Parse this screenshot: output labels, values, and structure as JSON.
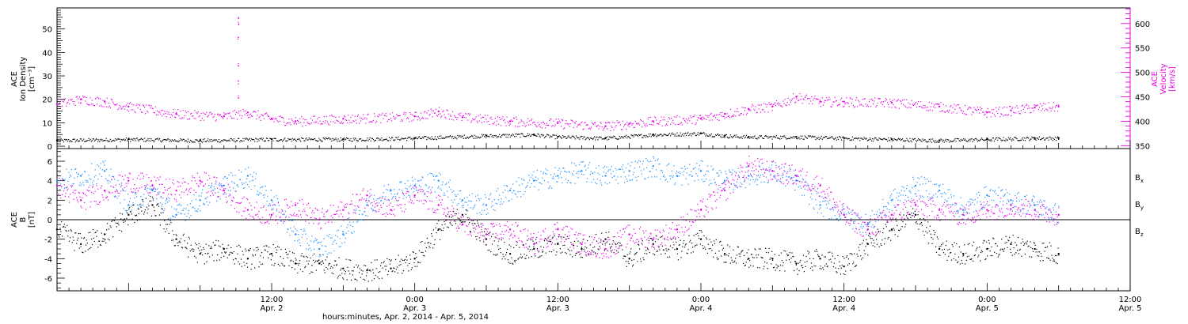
{
  "chart_data": [
    {
      "type": "scatter",
      "panel": "top",
      "x_start": "2014-04-01T18:00",
      "x_end": "2014-04-05T12:00",
      "ylabel_left": [
        "ACE",
        "Ion Density",
        "[cm⁻³]"
      ],
      "ylabel_right": [
        "ACE",
        "Velocity",
        "[km/s]"
      ],
      "ylim_left": [
        -1,
        59
      ],
      "ylim_right": [
        344,
        632
      ],
      "yticks_left": [
        0,
        10,
        20,
        30,
        40,
        50
      ],
      "yticks_right": [
        350,
        400,
        450,
        500,
        550,
        600
      ],
      "series": [
        {
          "axis": "left",
          "color": "#000000",
          "points": [
            [
              "2014-04-01T18:00",
              2.5
            ],
            [
              "2014-04-02T00:00",
              3.0
            ],
            [
              "2014-04-02T06:00",
              2.5
            ],
            [
              "2014-04-02T12:00",
              3.0
            ],
            [
              "2014-04-02T18:00",
              3.0
            ],
            [
              "2014-04-03T00:00",
              3.5
            ],
            [
              "2014-04-03T06:00",
              4.5
            ],
            [
              "2014-04-03T10:00",
              5.0
            ],
            [
              "2014-04-03T12:00",
              4.0
            ],
            [
              "2014-04-03T16:00",
              3.5
            ],
            [
              "2014-04-03T20:00",
              5.0
            ],
            [
              "2014-04-04T00:00",
              5.5
            ],
            [
              "2014-04-04T02:00",
              4.5
            ],
            [
              "2014-04-04T04:00",
              4.0
            ],
            [
              "2014-04-04T08:00",
              4.0
            ],
            [
              "2014-04-04T12:00",
              3.5
            ],
            [
              "2014-04-04T16:00",
              3.0
            ],
            [
              "2014-04-04T20:00",
              2.5
            ],
            [
              "2014-04-05T00:00",
              3.0
            ],
            [
              "2014-04-05T04:00",
              3.5
            ],
            [
              "2014-04-05T06:00",
              3.5
            ]
          ]
        },
        {
          "axis": "right",
          "color": "#e600e6",
          "points": [
            [
              "2014-04-01T18:00",
              435
            ],
            [
              "2014-04-01T20:00",
              445
            ],
            [
              "2014-04-01T22:00",
              440
            ],
            [
              "2014-04-02T00:00",
              430
            ],
            [
              "2014-04-02T04:00",
              415
            ],
            [
              "2014-04-02T08:00",
              410
            ],
            [
              "2014-04-02T10:00",
              418
            ],
            [
              "2014-04-02T12:00",
              405
            ],
            [
              "2014-04-02T14:00",
              400
            ],
            [
              "2014-04-02T18:00",
              405
            ],
            [
              "2014-04-03T00:00",
              410
            ],
            [
              "2014-04-03T02:00",
              420
            ],
            [
              "2014-04-03T04:00",
              408
            ],
            [
              "2014-04-03T08:00",
              400
            ],
            [
              "2014-04-03T12:00",
              396
            ],
            [
              "2014-04-03T16:00",
              390
            ],
            [
              "2014-04-03T18:00",
              395
            ],
            [
              "2014-04-03T20:00",
              400
            ],
            [
              "2014-04-04T00:00",
              405
            ],
            [
              "2014-04-04T02:00",
              415
            ],
            [
              "2014-04-04T04:00",
              425
            ],
            [
              "2014-04-04T06:00",
              430
            ],
            [
              "2014-04-04T08:00",
              450
            ],
            [
              "2014-04-04T10:00",
              440
            ],
            [
              "2014-04-04T12:00",
              440
            ],
            [
              "2014-04-04T16:00",
              438
            ],
            [
              "2014-04-04T20:00",
              430
            ],
            [
              "2014-04-05T00:00",
              418
            ],
            [
              "2014-04-05T02:00",
              422
            ],
            [
              "2014-04-05T04:00",
              428
            ],
            [
              "2014-04-05T06:00",
              430
            ]
          ],
          "spike": {
            "time": "2014-04-02T09:10",
            "values": [
              450,
              480,
              515,
              570,
              600,
              615
            ]
          }
        }
      ]
    },
    {
      "type": "scatter",
      "panel": "bottom",
      "x_start": "2014-04-01T18:00",
      "x_end": "2014-04-05T12:00",
      "ylabel": [
        "ACE",
        "B",
        "[nT]"
      ],
      "ylim": [
        -7.3,
        7.3
      ],
      "yticks": [
        -6,
        -4,
        -2,
        0,
        2,
        4,
        6
      ],
      "zero_line": true,
      "legend_position": "right",
      "series": [
        {
          "name": "Bx",
          "legend_base": "B",
          "legend_sub": "x",
          "color": "#000000",
          "points": [
            [
              "2014-04-01T18:00",
              -1.0
            ],
            [
              "2014-04-01T20:00",
              -2.5
            ],
            [
              "2014-04-01T22:00",
              -1.5
            ],
            [
              "2014-04-02T00:00",
              0.5
            ],
            [
              "2014-04-02T02:00",
              1.5
            ],
            [
              "2014-04-02T04:00",
              -2.0
            ],
            [
              "2014-04-02T06:00",
              -3.5
            ],
            [
              "2014-04-02T08:00",
              -3.0
            ],
            [
              "2014-04-02T10:00",
              -4.0
            ],
            [
              "2014-04-02T12:00",
              -3.5
            ],
            [
              "2014-04-02T14:00",
              -4.5
            ],
            [
              "2014-04-02T16:00",
              -4.5
            ],
            [
              "2014-04-02T18:00",
              -5.0
            ],
            [
              "2014-04-02T20:00",
              -5.2
            ],
            [
              "2014-04-02T22:00",
              -5.0
            ],
            [
              "2014-04-03T00:00",
              -4.0
            ],
            [
              "2014-04-03T02:00",
              -1.0
            ],
            [
              "2014-04-03T04:00",
              0.5
            ],
            [
              "2014-04-03T06:00",
              -2.0
            ],
            [
              "2014-04-03T08:00",
              -3.5
            ],
            [
              "2014-04-03T10:00",
              -3.0
            ],
            [
              "2014-04-03T12:00",
              -2.5
            ],
            [
              "2014-04-03T14:00",
              -3.0
            ],
            [
              "2014-04-03T16:00",
              -2.0
            ],
            [
              "2014-04-03T18:00",
              -4.0
            ],
            [
              "2014-04-03T20:00",
              -2.5
            ],
            [
              "2014-04-03T22:00",
              -3.0
            ],
            [
              "2014-04-04T00:00",
              -2.0
            ],
            [
              "2014-04-04T02:00",
              -3.5
            ],
            [
              "2014-04-04T04:00",
              -4.0
            ],
            [
              "2014-04-04T06:00",
              -4.0
            ],
            [
              "2014-04-04T08:00",
              -4.5
            ],
            [
              "2014-04-04T10:00",
              -4.0
            ],
            [
              "2014-04-04T12:00",
              -4.8
            ],
            [
              "2014-04-04T14:00",
              -2.5
            ],
            [
              "2014-04-04T16:00",
              -1.0
            ],
            [
              "2014-04-04T18:00",
              0.5
            ],
            [
              "2014-04-04T20:00",
              -3.0
            ],
            [
              "2014-04-04T22:00",
              -3.5
            ],
            [
              "2014-04-05T00:00",
              -3.0
            ],
            [
              "2014-04-05T02:00",
              -2.5
            ],
            [
              "2014-04-05T04:00",
              -3.0
            ],
            [
              "2014-04-05T06:00",
              -3.5
            ]
          ]
        },
        {
          "name": "By",
          "legend_base": "B",
          "legend_sub": "y",
          "color": "#1e90ff",
          "points": [
            [
              "2014-04-01T18:00",
              4.0
            ],
            [
              "2014-04-01T20:00",
              4.5
            ],
            [
              "2014-04-01T22:00",
              5.0
            ],
            [
              "2014-04-02T00:00",
              1.5
            ],
            [
              "2014-04-02T02:00",
              3.0
            ],
            [
              "2014-04-02T04:00",
              0.5
            ],
            [
              "2014-04-02T06:00",
              2.0
            ],
            [
              "2014-04-02T08:00",
              3.5
            ],
            [
              "2014-04-02T10:00",
              4.5
            ],
            [
              "2014-04-02T12:00",
              2.0
            ],
            [
              "2014-04-02T14:00",
              -1.5
            ],
            [
              "2014-04-02T16:00",
              -3.0
            ],
            [
              "2014-04-02T18:00",
              -1.5
            ],
            [
              "2014-04-02T20:00",
              1.5
            ],
            [
              "2014-04-02T22:00",
              3.0
            ],
            [
              "2014-04-03T00:00",
              3.5
            ],
            [
              "2014-04-03T02:00",
              4.0
            ],
            [
              "2014-04-03T04:00",
              2.0
            ],
            [
              "2014-04-03T06:00",
              1.5
            ],
            [
              "2014-04-03T08:00",
              3.0
            ],
            [
              "2014-04-03T10:00",
              4.0
            ],
            [
              "2014-04-03T12:00",
              4.5
            ],
            [
              "2014-04-03T14:00",
              5.0
            ],
            [
              "2014-04-03T16:00",
              4.5
            ],
            [
              "2014-04-03T18:00",
              5.0
            ],
            [
              "2014-04-03T20:00",
              5.5
            ],
            [
              "2014-04-03T22:00",
              4.5
            ],
            [
              "2014-04-04T00:00",
              5.0
            ],
            [
              "2014-04-04T02:00",
              4.0
            ],
            [
              "2014-04-04T04:00",
              4.5
            ],
            [
              "2014-04-04T06:00",
              5.0
            ],
            [
              "2014-04-04T08:00",
              4.0
            ],
            [
              "2014-04-04T10:00",
              1.5
            ],
            [
              "2014-04-04T12:00",
              0.5
            ],
            [
              "2014-04-04T14:00",
              -0.5
            ],
            [
              "2014-04-04T16:00",
              2.0
            ],
            [
              "2014-04-04T18:00",
              3.5
            ],
            [
              "2014-04-04T20:00",
              3.0
            ],
            [
              "2014-04-04T22:00",
              1.0
            ],
            [
              "2014-04-05T00:00",
              2.5
            ],
            [
              "2014-04-05T02:00",
              2.0
            ],
            [
              "2014-04-05T04:00",
              1.5
            ],
            [
              "2014-04-05T06:00",
              0.5
            ]
          ]
        },
        {
          "name": "Bz",
          "legend_base": "B",
          "legend_sub": "z",
          "color": "#e600e6",
          "points": [
            [
              "2014-04-01T18:00",
              3.5
            ],
            [
              "2014-04-01T20:00",
              2.0
            ],
            [
              "2014-04-01T22:00",
              3.0
            ],
            [
              "2014-04-02T00:00",
              4.0
            ],
            [
              "2014-04-02T02:00",
              3.5
            ],
            [
              "2014-04-02T04:00",
              3.0
            ],
            [
              "2014-04-02T06:00",
              4.0
            ],
            [
              "2014-04-02T08:00",
              3.0
            ],
            [
              "2014-04-02T10:00",
              1.0
            ],
            [
              "2014-04-02T12:00",
              0.5
            ],
            [
              "2014-04-02T14:00",
              1.5
            ],
            [
              "2014-04-02T16:00",
              0.0
            ],
            [
              "2014-04-02T18:00",
              1.0
            ],
            [
              "2014-04-02T20:00",
              2.5
            ],
            [
              "2014-04-02T22:00",
              1.0
            ],
            [
              "2014-04-03T00:00",
              2.5
            ],
            [
              "2014-04-03T02:00",
              1.5
            ],
            [
              "2014-04-03T04:00",
              -0.5
            ],
            [
              "2014-04-03T06:00",
              -1.5
            ],
            [
              "2014-04-03T08:00",
              -1.0
            ],
            [
              "2014-04-03T10:00",
              -2.5
            ],
            [
              "2014-04-03T12:00",
              -1.0
            ],
            [
              "2014-04-03T14:00",
              -2.5
            ],
            [
              "2014-04-03T16:00",
              -3.0
            ],
            [
              "2014-04-03T18:00",
              -1.5
            ],
            [
              "2014-04-03T20:00",
              -2.0
            ],
            [
              "2014-04-03T22:00",
              -1.0
            ],
            [
              "2014-04-04T00:00",
              1.0
            ],
            [
              "2014-04-04T02:00",
              3.0
            ],
            [
              "2014-04-04T04:00",
              5.5
            ],
            [
              "2014-04-04T06:00",
              5.0
            ],
            [
              "2014-04-04T08:00",
              4.5
            ],
            [
              "2014-04-04T10:00",
              3.5
            ],
            [
              "2014-04-04T12:00",
              0.5
            ],
            [
              "2014-04-04T14:00",
              -1.0
            ],
            [
              "2014-04-04T16:00",
              0.5
            ],
            [
              "2014-04-04T18:00",
              1.5
            ],
            [
              "2014-04-04T20:00",
              1.0
            ],
            [
              "2014-04-04T22:00",
              0.5
            ],
            [
              "2014-04-05T00:00",
              1.0
            ],
            [
              "2014-04-05T02:00",
              1.5
            ],
            [
              "2014-04-05T04:00",
              1.0
            ],
            [
              "2014-04-05T06:00",
              0.5
            ]
          ]
        }
      ]
    }
  ],
  "x_axis": {
    "title": "hours:minutes, Apr.  2, 2014 - Apr.  5, 2014",
    "ticks": [
      {
        "time": "2014-04-02T12:00",
        "line1": "12:00",
        "line2": "Apr. 2"
      },
      {
        "time": "2014-04-03T00:00",
        "line1": "0:00",
        "line2": "Apr. 3"
      },
      {
        "time": "2014-04-03T12:00",
        "line1": "12:00",
        "line2": "Apr. 3"
      },
      {
        "time": "2014-04-04T00:00",
        "line1": "0:00",
        "line2": "Apr. 4"
      },
      {
        "time": "2014-04-04T12:00",
        "line1": "12:00",
        "line2": "Apr. 4"
      },
      {
        "time": "2014-04-05T00:00",
        "line1": "0:00",
        "line2": "Apr. 5"
      },
      {
        "time": "2014-04-05T12:00",
        "line1": "12:00",
        "line2": "Apr. 5"
      }
    ]
  },
  "colors": {
    "density": "#000000",
    "velocity": "#e600e6",
    "bx": "#000000",
    "by": "#1e90ff",
    "bz": "#e600e6"
  }
}
